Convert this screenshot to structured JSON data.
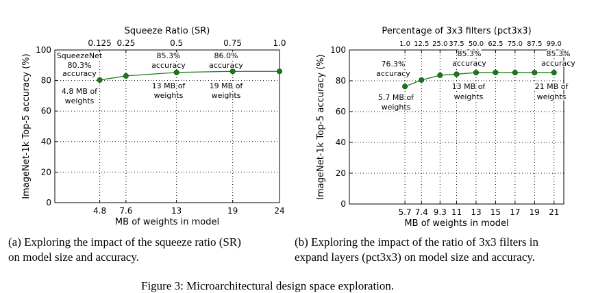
{
  "chart_data": [
    {
      "type": "line",
      "x": [
        4.8,
        7.6,
        13,
        19,
        24
      ],
      "series": [
        {
          "values": [
            80.3,
            83.0,
            85.3,
            86.0,
            86.0
          ]
        }
      ],
      "xlabel": "MB of weights in model",
      "ylabel": "ImageNet-1k Top-5 accuracy (%)",
      "top_axis_label": "Squeeze Ratio (SR)",
      "xticks": [
        "4.8",
        "7.6",
        "13",
        "19",
        "24"
      ],
      "top_ticks": [
        "0.125",
        "0.25",
        "0.5",
        "0.75",
        "1.0"
      ],
      "yticks": [
        "0",
        "20",
        "40",
        "60",
        "80",
        "100"
      ],
      "ylim": [
        0,
        100
      ],
      "xlim": [
        0,
        24
      ],
      "grid": true,
      "color": "#1a7a1a",
      "annotations": [
        "SqueezeNet",
        "80.3%",
        "accuracy",
        "4.8 MB of",
        "weights",
        "85.3%",
        "accuracy",
        "13 MB of",
        "weights",
        "86.0%",
        "accuracy",
        "19 MB of",
        "weights"
      ],
      "caption": [
        "(a)  Exploring the impact of the squeeze ratio (SR)",
        "on model size and accuracy."
      ]
    },
    {
      "type": "line",
      "x": [
        5.7,
        7.4,
        9.3,
        11,
        13,
        15,
        17,
        19,
        21
      ],
      "series": [
        {
          "values": [
            76.3,
            80.5,
            83.6,
            84.3,
            85.3,
            85.4,
            85.3,
            85.3,
            85.3
          ]
        }
      ],
      "xlabel": "MB of weights in model",
      "ylabel": "ImageNet-1k Top-5 accuracy (%)",
      "top_axis_label": "Percentage of 3x3 filters (pct3x3)",
      "xticks": [
        "5.7",
        "7.4",
        "9.3",
        "11",
        "13",
        "15",
        "17",
        "19",
        "21"
      ],
      "top_ticks": [
        "1.0",
        "12.5",
        "25.0",
        "37.5",
        "50.0",
        "62.5",
        "75.0",
        "87.5",
        "99.0"
      ],
      "yticks": [
        "0",
        "20",
        "40",
        "60",
        "80",
        "100"
      ],
      "ylim": [
        0,
        100
      ],
      "xlim": [
        0,
        22
      ],
      "grid": true,
      "color": "#1a7a1a",
      "annotations": [
        "76.3%",
        "accuracy",
        "5.7 MB of",
        "weights",
        "85.3%",
        "accuracy",
        "13 MB of",
        "weights",
        "85.3%",
        "accuracy",
        "21 MB of",
        "weights"
      ],
      "caption": [
        "(b)  Exploring the impact of the ratio of 3x3 filters in",
        "expand layers (pct3x3) on model size and accuracy."
      ]
    }
  ],
  "figure_caption": "Figure 3: Microarchitectural design space exploration."
}
